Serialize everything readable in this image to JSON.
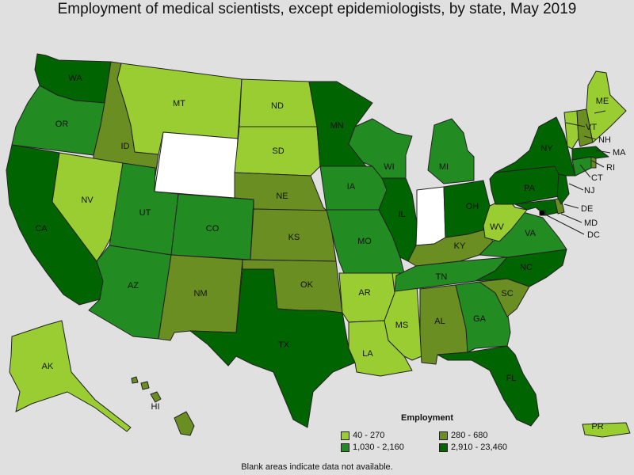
{
  "title": "Employment of medical scientists, except epidemiologists, by state, May 2019",
  "legend": {
    "title": "Employment",
    "items": [
      {
        "label": "40 - 270",
        "color": "#9acd32"
      },
      {
        "label": "280 - 680",
        "color": "#6b8e23"
      },
      {
        "label": "1,030 - 2,160",
        "color": "#228b22"
      },
      {
        "label": "2,910 - 23,460",
        "color": "#006400"
      }
    ]
  },
  "footnote": "Blank areas indicate data not available.",
  "colors": {
    "background": "#e0e0e0",
    "no_data": "#ffffff"
  },
  "states": {
    "WA": {
      "label": "WA",
      "bin": 3
    },
    "OR": {
      "label": "OR",
      "bin": 2
    },
    "CA": {
      "label": "CA",
      "bin": 3
    },
    "ID": {
      "label": "ID",
      "bin": 1
    },
    "NV": {
      "label": "NV",
      "bin": 0
    },
    "MT": {
      "label": "MT",
      "bin": 0
    },
    "WY": {
      "label": "",
      "bin": -1
    },
    "UT": {
      "label": "UT",
      "bin": 2
    },
    "AZ": {
      "label": "AZ",
      "bin": 2
    },
    "CO": {
      "label": "CO",
      "bin": 2
    },
    "NM": {
      "label": "NM",
      "bin": 1
    },
    "ND": {
      "label": "ND",
      "bin": 0
    },
    "SD": {
      "label": "SD",
      "bin": 0
    },
    "NE": {
      "label": "NE",
      "bin": 1
    },
    "KS": {
      "label": "KS",
      "bin": 1
    },
    "OK": {
      "label": "OK",
      "bin": 1
    },
    "TX": {
      "label": "TX",
      "bin": 3
    },
    "MN": {
      "label": "MN",
      "bin": 3
    },
    "IA": {
      "label": "IA",
      "bin": 2
    },
    "MO": {
      "label": "MO",
      "bin": 2
    },
    "AR": {
      "label": "AR",
      "bin": 0
    },
    "LA": {
      "label": "LA",
      "bin": 0
    },
    "WI": {
      "label": "WI",
      "bin": 2
    },
    "IL": {
      "label": "IL",
      "bin": 3
    },
    "MS": {
      "label": "MS",
      "bin": 0
    },
    "MI": {
      "label": "MI",
      "bin": 2
    },
    "IN": {
      "label": "",
      "bin": -1
    },
    "OH": {
      "label": "OH",
      "bin": 3
    },
    "KY": {
      "label": "KY",
      "bin": 1
    },
    "TN": {
      "label": "TN",
      "bin": 2
    },
    "AL": {
      "label": "AL",
      "bin": 1
    },
    "GA": {
      "label": "GA",
      "bin": 2
    },
    "FL": {
      "label": "FL",
      "bin": 3
    },
    "SC": {
      "label": "SC",
      "bin": 1
    },
    "NC": {
      "label": "NC",
      "bin": 3
    },
    "VA": {
      "label": "VA",
      "bin": 2
    },
    "WV": {
      "label": "WV",
      "bin": 0
    },
    "MD": {
      "label": "MD",
      "bin": 3
    },
    "DE": {
      "label": "DE",
      "bin": 1
    },
    "DC": {
      "label": "DC",
      "bin": 3
    },
    "PA": {
      "label": "PA",
      "bin": 3
    },
    "NJ": {
      "label": "NJ",
      "bin": 3
    },
    "NY": {
      "label": "NY",
      "bin": 3
    },
    "CT": {
      "label": "CT",
      "bin": 2
    },
    "RI": {
      "label": "RI",
      "bin": 1
    },
    "MA": {
      "label": "MA",
      "bin": 3
    },
    "VT": {
      "label": "VT",
      "bin": 0
    },
    "NH": {
      "label": "NH",
      "bin": 1
    },
    "ME": {
      "label": "ME",
      "bin": 0
    },
    "AK": {
      "label": "AK",
      "bin": 0
    },
    "HI": {
      "label": "HI",
      "bin": 1
    },
    "PR": {
      "label": "PR",
      "bin": 0
    }
  }
}
